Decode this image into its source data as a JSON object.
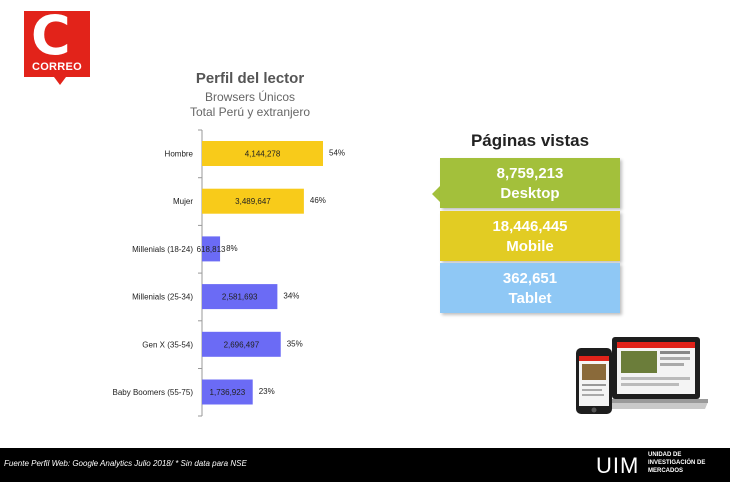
{
  "logo": {
    "letter": "C",
    "name": "CORREO"
  },
  "header": {
    "title": "Perfil del lector",
    "subtitle1": "Browsers Únicos",
    "subtitle2": "Total Perú y extranjero"
  },
  "chart_data": {
    "type": "bar",
    "orientation": "horizontal",
    "categories": [
      "Hombre",
      "Mujer",
      "Millenials (18-24)",
      "Millenials (25-34)",
      "Gen X (35-54)",
      "Baby Boomers (55-75)"
    ],
    "values": [
      4144278,
      3489647,
      618813,
      2581693,
      2696497,
      1736923
    ],
    "value_labels": [
      "4,144,278",
      "3,489,647",
      "618,813",
      "2,581,693",
      "2,696,497",
      "1,736,923"
    ],
    "percent_labels": [
      "54%",
      "46%",
      "8%",
      "34%",
      "35%",
      "23%"
    ],
    "colors": [
      "#f8cb1a",
      "#f8cb1a",
      "#6b6bf5",
      "#6b6bf5",
      "#6b6bf5",
      "#6b6bf5"
    ],
    "xlim": [
      0,
      4144278
    ],
    "grid": false,
    "legend": "none"
  },
  "paginas_vistas": {
    "title": "Páginas vistas",
    "desktop": {
      "value": "8,759,213",
      "label": "Desktop",
      "color": "#a3c03b"
    },
    "mobile": {
      "value": "18,446,445",
      "label": "Mobile",
      "color": "#e2cc23"
    },
    "tablet": {
      "value": "362,651",
      "label": "Tablet",
      "color": "#8fc8f5"
    }
  },
  "footer": {
    "note": "Fuente Perfil Web: Google Analytics Julio 2018/  * Sin data para NSE",
    "brand": "UIM",
    "unit_line1": "UNIDAD DE",
    "unit_line2": "INVESTIGACIÓN DE",
    "unit_line3": "MERCADOS"
  }
}
